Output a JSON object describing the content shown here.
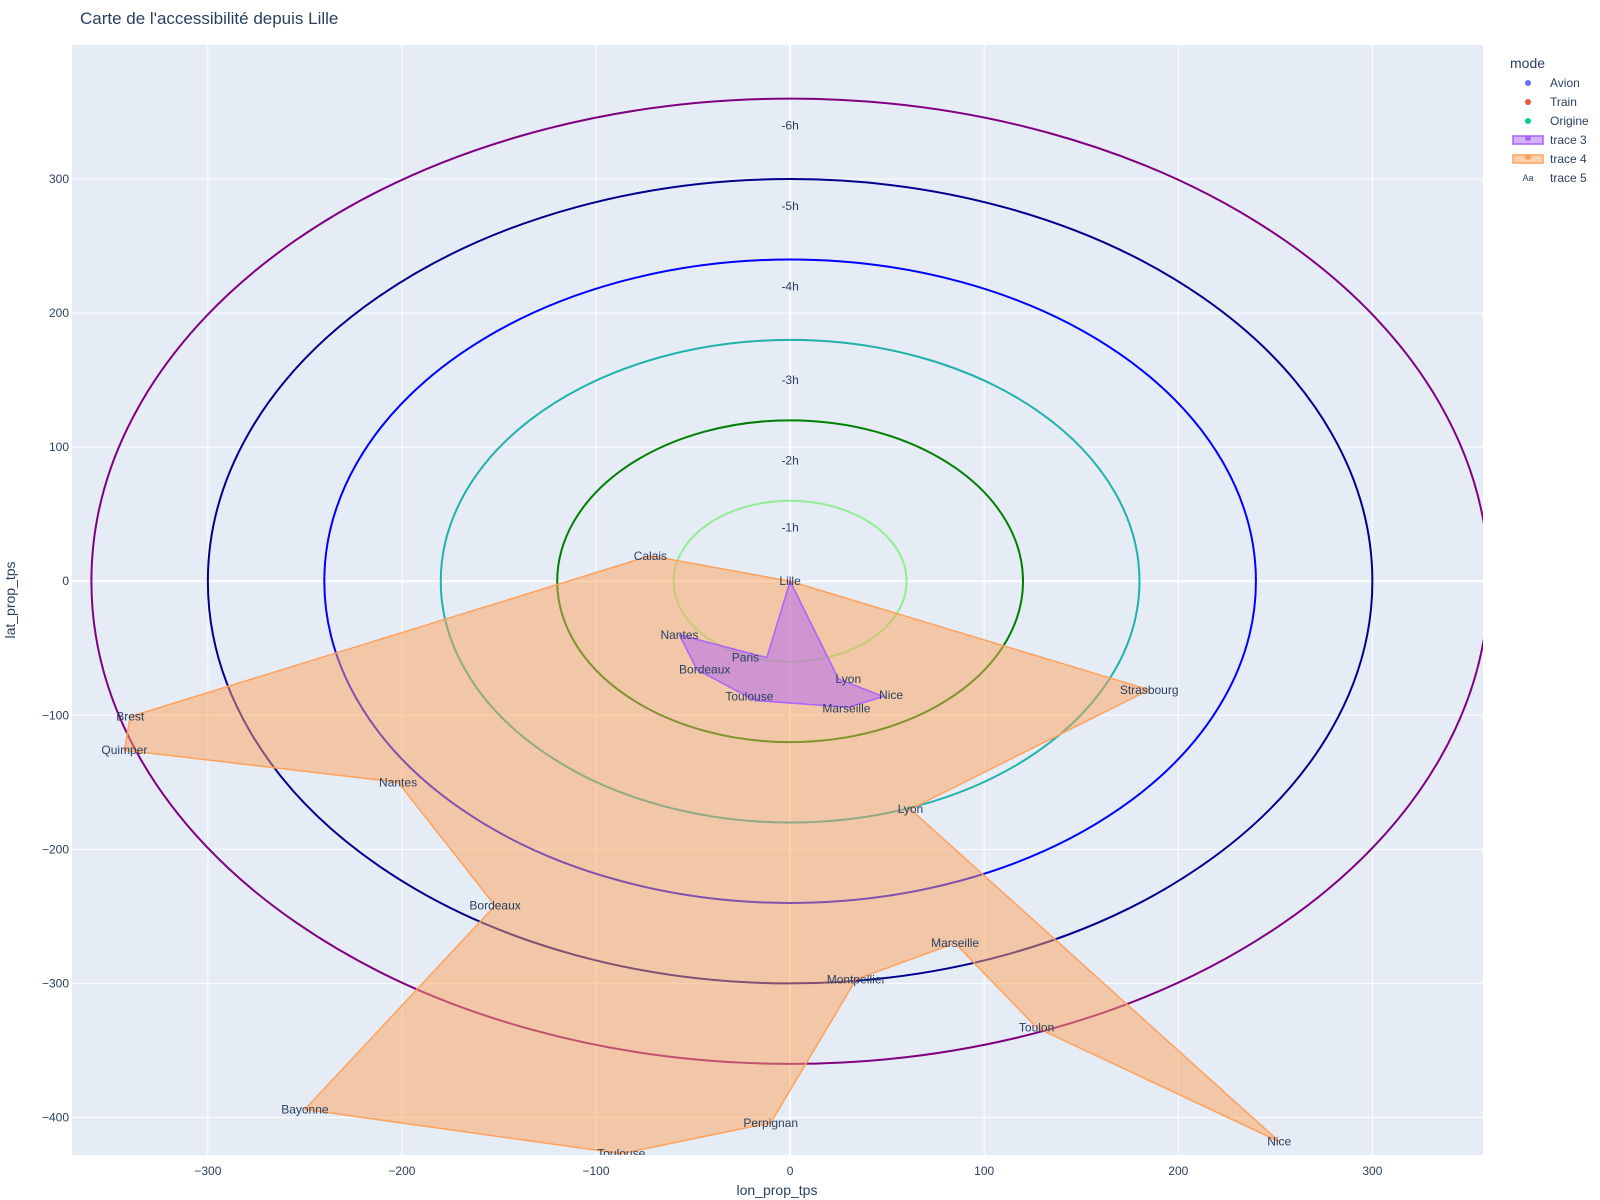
{
  "chart_data": {
    "type": "scatter",
    "title": "Carte de l'accessibilité depuis Lille",
    "xlabel": "lon_prop_tps",
    "ylabel": "lat_prop_tps",
    "xlim": [
      -370,
      357
    ],
    "ylim": [
      -428,
      400
    ],
    "x_ticks": [
      -300,
      -200,
      -100,
      0,
      100,
      200,
      300
    ],
    "y_ticks": [
      300,
      200,
      100,
      0,
      -100,
      -200,
      -300,
      -400
    ],
    "x_tick_labels": [
      "−300",
      "−200",
      "−100",
      "0",
      "100",
      "200",
      "300"
    ],
    "y_tick_labels": [
      "300",
      "200",
      "100",
      "0",
      "−100",
      "−200",
      "−300",
      "−400"
    ],
    "grid": true,
    "plot_bg": "#e5ecf6",
    "legend": {
      "title": "mode",
      "placement": "top-right",
      "items": [
        {
          "label": "Avion",
          "symbol": "dot",
          "color": "#636efa"
        },
        {
          "label": "Train",
          "symbol": "dot",
          "color": "#ef553b"
        },
        {
          "label": "Origine",
          "symbol": "dot",
          "color": "#00cc96"
        },
        {
          "label": "trace 3",
          "symbol": "fill",
          "color": "#ab63fa"
        },
        {
          "label": "trace 4",
          "symbol": "fill",
          "color": "#ffa15a"
        },
        {
          "label": "trace 5",
          "symbol": "text",
          "color": "#2a3f5f"
        }
      ]
    },
    "rings": [
      {
        "label": "-1h",
        "radius": 60,
        "color": "#90ee90",
        "label_y": 40
      },
      {
        "label": "-2h",
        "radius": 120,
        "color": "#008000",
        "label_y": 90
      },
      {
        "label": "-3h",
        "radius": 180,
        "color": "#20b2aa",
        "label_y": 150
      },
      {
        "label": "-4h",
        "radius": 240,
        "color": "#0000ff",
        "label_y": 220
      },
      {
        "label": "-5h",
        "radius": 300,
        "color": "#00008b",
        "label_y": 280
      },
      {
        "label": "-6h",
        "radius": 360,
        "color": "#800080",
        "label_y": 340
      }
    ],
    "series": [
      {
        "name": "trace 4",
        "mode": "Train",
        "color": "#ffa15a",
        "points": [
          {
            "city": "Lille",
            "x": 0,
            "y": 0
          },
          {
            "city": "Strasbourg",
            "x": 185,
            "y": -81
          },
          {
            "city": "Lyon",
            "x": 62,
            "y": -170
          },
          {
            "city": "Nice",
            "x": 252,
            "y": -418
          },
          {
            "city": "Toulon",
            "x": 127,
            "y": -333
          },
          {
            "city": "Marseille",
            "x": 85,
            "y": -270
          },
          {
            "city": "Montpellier",
            "x": 34,
            "y": -297
          },
          {
            "city": "Perpignan",
            "x": -10,
            "y": -404
          },
          {
            "city": "Toulouse",
            "x": -87,
            "y": -427
          },
          {
            "city": "Bayonne",
            "x": -250,
            "y": -394
          },
          {
            "city": "Bordeaux",
            "x": -152,
            "y": -242
          },
          {
            "city": "Nantes",
            "x": -202,
            "y": -150
          },
          {
            "city": "Quimper",
            "x": -343,
            "y": -126
          },
          {
            "city": "Brest",
            "x": -340,
            "y": -101
          },
          {
            "city": "Calais",
            "x": -72,
            "y": 19
          }
        ]
      },
      {
        "name": "trace 3",
        "mode": "Avion",
        "color": "#ab63fa",
        "points": [
          {
            "city": "Lille",
            "x": 0,
            "y": 0
          },
          {
            "city": "Lyon",
            "x": 25,
            "y": -73
          },
          {
            "city": "Nice",
            "x": 48,
            "y": -86
          },
          {
            "city": "Marseille",
            "x": 30,
            "y": -94
          },
          {
            "city": "Toulouse",
            "x": -18,
            "y": -89
          },
          {
            "city": "Bordeaux",
            "x": -48,
            "y": -66
          },
          {
            "city": "Nantes",
            "x": -57,
            "y": -40
          },
          {
            "city": "Paris",
            "x": -12,
            "y": -57
          }
        ]
      }
    ],
    "labels": [
      {
        "text": "Lille",
        "x": 0,
        "y": 0
      },
      {
        "text": "Calais",
        "x": -72,
        "y": 19
      },
      {
        "text": "Strasbourg",
        "x": 185,
        "y": -81
      },
      {
        "text": "Lyon",
        "x": 62,
        "y": -170
      },
      {
        "text": "Nice",
        "x": 252,
        "y": -418
      },
      {
        "text": "Toulon",
        "x": 127,
        "y": -333
      },
      {
        "text": "Marseille",
        "x": 85,
        "y": -270
      },
      {
        "text": "Montpellier",
        "x": 34,
        "y": -297
      },
      {
        "text": "Perpignan",
        "x": -10,
        "y": -404
      },
      {
        "text": "Toulouse",
        "x": -87,
        "y": -427
      },
      {
        "text": "Bayonne",
        "x": -250,
        "y": -394
      },
      {
        "text": "Bordeaux",
        "x": -152,
        "y": -242
      },
      {
        "text": "Nantes",
        "x": -202,
        "y": -150
      },
      {
        "text": "Quimper",
        "x": -343,
        "y": -126
      },
      {
        "text": "Brest",
        "x": -340,
        "y": -101
      },
      {
        "text": "Nantes",
        "x": -57,
        "y": -40
      },
      {
        "text": "Paris",
        "x": -23,
        "y": -57
      },
      {
        "text": "Bordeaux",
        "x": -44,
        "y": -66
      },
      {
        "text": "Toulouse",
        "x": -21,
        "y": -86
      },
      {
        "text": "Lyon",
        "x": 30,
        "y": -73
      },
      {
        "text": "Nice",
        "x": 52,
        "y": -85
      },
      {
        "text": "Marseille",
        "x": 29,
        "y": -95
      }
    ]
  }
}
